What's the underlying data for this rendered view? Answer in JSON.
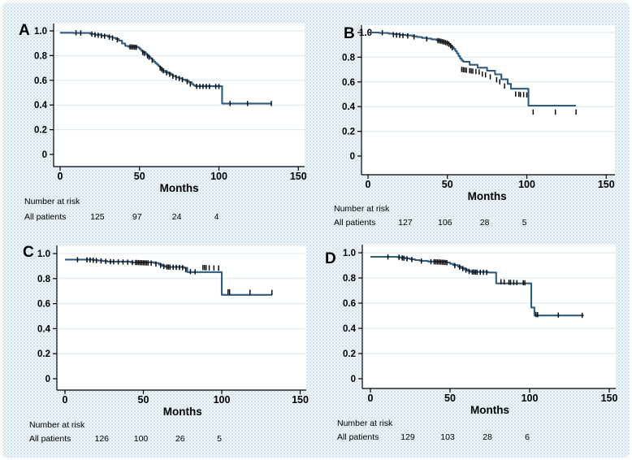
{
  "figure": {
    "xlabel": "Months",
    "risk_header": "Number at risk",
    "risk_label": "All patients",
    "colors": {
      "curve": "#2f5c7e",
      "censor": "#0b0b0b",
      "grid": "#d9e6f0",
      "axis": "#000000",
      "plot_bg": "#feffff",
      "page_bg": "#eff4f8",
      "dot": "#c7dbe8",
      "text": "#000000"
    }
  },
  "axes": {
    "x_ticks": [
      0,
      50,
      100,
      150
    ],
    "x_tick_labels": [
      "0",
      "50",
      "100",
      "150"
    ],
    "y_tick_values": [
      1,
      0.8,
      0.6,
      0.4,
      0.2,
      0
    ],
    "y_tick_labels": [
      "1.0",
      "0.8",
      "0.6",
      "0.4",
      "0.2",
      "0"
    ],
    "xlim": [
      0,
      150
    ],
    "ylim": [
      0,
      1
    ],
    "grid": "horizontal"
  },
  "chart_data": [
    {
      "panel": "A",
      "type": "line",
      "curve_style": "kaplan-meier-step",
      "xlabel": "Months",
      "ylabel": "",
      "xlim": [
        0,
        150
      ],
      "ylim": [
        0,
        1
      ],
      "risk_times": [
        25,
        50,
        75,
        100
      ],
      "risk_counts": [
        125,
        97,
        24,
        4
      ],
      "steps": [
        [
          0,
          0.985
        ],
        [
          8,
          0.983
        ],
        [
          19,
          0.975
        ],
        [
          22,
          0.969
        ],
        [
          26,
          0.962
        ],
        [
          30,
          0.952
        ],
        [
          33,
          0.944
        ],
        [
          35,
          0.934
        ],
        [
          37,
          0.922
        ],
        [
          39,
          0.898
        ],
        [
          41,
          0.878
        ],
        [
          43,
          0.871
        ],
        [
          49,
          0.866
        ],
        [
          50,
          0.854
        ],
        [
          51,
          0.84
        ],
        [
          52,
          0.827
        ],
        [
          54,
          0.811
        ],
        [
          55,
          0.799
        ],
        [
          56,
          0.789
        ],
        [
          57,
          0.776
        ],
        [
          58,
          0.764
        ],
        [
          59,
          0.751
        ],
        [
          60,
          0.738
        ],
        [
          61,
          0.727
        ],
        [
          62,
          0.714
        ],
        [
          63,
          0.701
        ],
        [
          64,
          0.69
        ],
        [
          65,
          0.678
        ],
        [
          66,
          0.667
        ],
        [
          68,
          0.656
        ],
        [
          70,
          0.645
        ],
        [
          71,
          0.634
        ],
        [
          73,
          0.624
        ],
        [
          75,
          0.616
        ],
        [
          77,
          0.606
        ],
        [
          79,
          0.596
        ],
        [
          81,
          0.584
        ],
        [
          83,
          0.569
        ],
        [
          84,
          0.559
        ],
        [
          85,
          0.552
        ],
        [
          101,
          0.552
        ],
        [
          102,
          0.412
        ],
        [
          133,
          0.412
        ]
      ],
      "censors": [
        [
          10,
          0.984
        ],
        [
          13,
          0.983
        ],
        [
          20,
          0.974
        ],
        [
          22,
          0.968
        ],
        [
          24,
          0.965
        ],
        [
          26,
          0.961
        ],
        [
          28,
          0.957
        ],
        [
          31,
          0.95
        ],
        [
          33,
          0.943
        ],
        [
          36,
          0.928
        ],
        [
          44,
          0.87
        ],
        [
          45,
          0.87
        ],
        [
          46,
          0.869
        ],
        [
          47,
          0.868
        ],
        [
          48,
          0.867
        ],
        [
          52,
          0.826
        ],
        [
          53,
          0.818
        ],
        [
          55,
          0.797
        ],
        [
          56,
          0.787
        ],
        [
          58,
          0.762
        ],
        [
          63,
          0.699
        ],
        [
          64,
          0.688
        ],
        [
          65,
          0.677
        ],
        [
          67,
          0.661
        ],
        [
          69,
          0.649
        ],
        [
          71,
          0.633
        ],
        [
          73,
          0.623
        ],
        [
          75,
          0.615
        ],
        [
          77,
          0.605
        ],
        [
          80,
          0.589
        ],
        [
          82,
          0.57
        ],
        [
          86,
          0.551
        ],
        [
          88,
          0.551
        ],
        [
          90,
          0.551
        ],
        [
          92,
          0.551
        ],
        [
          94,
          0.55
        ],
        [
          98,
          0.55
        ],
        [
          100,
          0.55
        ],
        [
          107,
          0.412
        ],
        [
          118,
          0.412
        ],
        [
          133,
          0.412
        ]
      ]
    },
    {
      "panel": "B",
      "type": "line",
      "curve_style": "kaplan-meier-step",
      "xlabel": "Months",
      "ylabel": "",
      "xlim": [
        0,
        150
      ],
      "ylim": [
        0,
        1
      ],
      "risk_times": [
        25,
        50,
        75,
        100
      ],
      "risk_counts": [
        127,
        106,
        28,
        5
      ],
      "steps": [
        [
          0,
          1.0
        ],
        [
          7,
          0.996
        ],
        [
          13,
          0.991
        ],
        [
          16,
          0.986
        ],
        [
          20,
          0.981
        ],
        [
          24,
          0.976
        ],
        [
          28,
          0.969
        ],
        [
          31,
          0.963
        ],
        [
          34,
          0.956
        ],
        [
          37,
          0.951
        ],
        [
          40,
          0.945
        ],
        [
          43,
          0.938
        ],
        [
          45,
          0.931
        ],
        [
          47,
          0.924
        ],
        [
          49,
          0.916
        ],
        [
          51,
          0.907
        ],
        [
          52,
          0.895
        ],
        [
          53,
          0.882
        ],
        [
          54,
          0.867
        ],
        [
          55,
          0.85
        ],
        [
          56,
          0.831
        ],
        [
          57,
          0.81
        ],
        [
          58,
          0.789
        ],
        [
          59,
          0.774
        ],
        [
          60,
          0.764
        ],
        [
          64,
          0.739
        ],
        [
          69,
          0.715
        ],
        [
          75,
          0.69
        ],
        [
          80,
          0.661
        ],
        [
          84,
          0.621
        ],
        [
          88,
          0.584
        ],
        [
          90,
          0.545
        ],
        [
          100,
          0.545
        ],
        [
          101,
          0.408
        ],
        [
          131,
          0.408
        ]
      ],
      "censors": [
        [
          9,
          0.998
        ],
        [
          16,
          0.983
        ],
        [
          18,
          0.98
        ],
        [
          20,
          0.978
        ],
        [
          22,
          0.975
        ],
        [
          25,
          0.972
        ],
        [
          29,
          0.965
        ],
        [
          37,
          0.948
        ],
        [
          44,
          0.935
        ],
        [
          45,
          0.932
        ],
        [
          46,
          0.929
        ],
        [
          47,
          0.926
        ],
        [
          48,
          0.922
        ],
        [
          49,
          0.918
        ],
        [
          50,
          0.913
        ],
        [
          51,
          0.905
        ],
        [
          52,
          0.892
        ],
        [
          53,
          0.877
        ],
        [
          59,
          0.701
        ],
        [
          60,
          0.699
        ],
        [
          61,
          0.697
        ],
        [
          62,
          0.695
        ],
        [
          64,
          0.691
        ],
        [
          65,
          0.689
        ],
        [
          66,
          0.687
        ],
        [
          68,
          0.684
        ],
        [
          70,
          0.68
        ],
        [
          72,
          0.663
        ],
        [
          74,
          0.657
        ],
        [
          77,
          0.641
        ],
        [
          81,
          0.617
        ],
        [
          83,
          0.601
        ],
        [
          86,
          0.567
        ],
        [
          93,
          0.502
        ],
        [
          95,
          0.5
        ],
        [
          96,
          0.498
        ],
        [
          98,
          0.497
        ],
        [
          100,
          0.495
        ],
        [
          104,
          0.356
        ],
        [
          118,
          0.356
        ],
        [
          131,
          0.356
        ]
      ]
    },
    {
      "panel": "C",
      "type": "line",
      "curve_style": "kaplan-meier-step",
      "xlabel": "Months",
      "ylabel": "",
      "xlim": [
        0,
        150
      ],
      "ylim": [
        0,
        1
      ],
      "risk_times": [
        25,
        50,
        75,
        100
      ],
      "risk_counts": [
        126,
        100,
        26,
        5
      ],
      "steps": [
        [
          0,
          0.952
        ],
        [
          18,
          0.948
        ],
        [
          21,
          0.944
        ],
        [
          24,
          0.94
        ],
        [
          27,
          0.936
        ],
        [
          42,
          0.93
        ],
        [
          57,
          0.924
        ],
        [
          60,
          0.912
        ],
        [
          62,
          0.901
        ],
        [
          64,
          0.893
        ],
        [
          76,
          0.886
        ],
        [
          78,
          0.852
        ],
        [
          100,
          0.67
        ],
        [
          132,
          0.67
        ]
      ],
      "censors": [
        [
          8,
          0.951
        ],
        [
          14,
          0.95
        ],
        [
          16,
          0.949
        ],
        [
          18,
          0.947
        ],
        [
          20,
          0.944
        ],
        [
          23,
          0.941
        ],
        [
          26,
          0.938
        ],
        [
          29,
          0.935
        ],
        [
          31,
          0.934
        ],
        [
          34,
          0.933
        ],
        [
          37,
          0.932
        ],
        [
          40,
          0.931
        ],
        [
          43,
          0.929
        ],
        [
          45,
          0.929
        ],
        [
          46,
          0.928
        ],
        [
          47,
          0.928
        ],
        [
          48,
          0.927
        ],
        [
          49,
          0.927
        ],
        [
          50,
          0.926
        ],
        [
          51,
          0.926
        ],
        [
          52,
          0.925
        ],
        [
          53,
          0.925
        ],
        [
          55,
          0.924
        ],
        [
          58,
          0.917
        ],
        [
          61,
          0.905
        ],
        [
          63,
          0.897
        ],
        [
          65,
          0.893
        ],
        [
          66,
          0.893
        ],
        [
          67,
          0.892
        ],
        [
          69,
          0.891
        ],
        [
          71,
          0.89
        ],
        [
          73,
          0.889
        ],
        [
          75,
          0.888
        ],
        [
          77,
          0.872
        ],
        [
          80,
          0.856
        ],
        [
          83,
          0.854
        ],
        [
          88,
          0.889
        ],
        [
          89,
          0.888
        ],
        [
          90,
          0.887
        ],
        [
          92,
          0.886
        ],
        [
          95,
          0.885
        ],
        [
          98,
          0.884
        ],
        [
          104,
          0.694
        ],
        [
          105,
          0.693
        ],
        [
          118,
          0.691
        ],
        [
          132,
          0.689
        ]
      ]
    },
    {
      "panel": "D",
      "type": "line",
      "curve_style": "kaplan-meier-step",
      "xlabel": "Months",
      "ylabel": "",
      "xlim": [
        0,
        150
      ],
      "ylim": [
        0,
        1
      ],
      "risk_times": [
        25,
        50,
        75,
        100
      ],
      "risk_counts": [
        129,
        103,
        28,
        6
      ],
      "steps": [
        [
          0,
          0.968
        ],
        [
          17,
          0.965
        ],
        [
          19,
          0.96
        ],
        [
          22,
          0.954
        ],
        [
          25,
          0.948
        ],
        [
          28,
          0.942
        ],
        [
          31,
          0.936
        ],
        [
          36,
          0.93
        ],
        [
          48,
          0.922
        ],
        [
          50,
          0.912
        ],
        [
          52,
          0.902
        ],
        [
          55,
          0.89
        ],
        [
          57,
          0.879
        ],
        [
          59,
          0.868
        ],
        [
          61,
          0.856
        ],
        [
          63,
          0.848
        ],
        [
          74,
          0.843
        ],
        [
          79,
          0.757
        ],
        [
          101,
          0.565
        ],
        [
          103,
          0.502
        ],
        [
          134,
          0.502
        ]
      ],
      "censors": [
        [
          11,
          0.967
        ],
        [
          18,
          0.964
        ],
        [
          20,
          0.959
        ],
        [
          21,
          0.957
        ],
        [
          23,
          0.952
        ],
        [
          26,
          0.946
        ],
        [
          32,
          0.934
        ],
        [
          38,
          0.929
        ],
        [
          40,
          0.928
        ],
        [
          41,
          0.928
        ],
        [
          42,
          0.927
        ],
        [
          43,
          0.927
        ],
        [
          44,
          0.926
        ],
        [
          45,
          0.925
        ],
        [
          46,
          0.924
        ],
        [
          47,
          0.923
        ],
        [
          48,
          0.921
        ],
        [
          53,
          0.898
        ],
        [
          56,
          0.886
        ],
        [
          58,
          0.875
        ],
        [
          60,
          0.862
        ],
        [
          62,
          0.852
        ],
        [
          64,
          0.847
        ],
        [
          65,
          0.847
        ],
        [
          66,
          0.846
        ],
        [
          67,
          0.846
        ],
        [
          69,
          0.845
        ],
        [
          71,
          0.845
        ],
        [
          73,
          0.844
        ],
        [
          82,
          0.77
        ],
        [
          84,
          0.768
        ],
        [
          87,
          0.766
        ],
        [
          88,
          0.765
        ],
        [
          90,
          0.764
        ],
        [
          92,
          0.763
        ],
        [
          96,
          0.762
        ],
        [
          97,
          0.761
        ],
        [
          104,
          0.51
        ],
        [
          105,
          0.508
        ],
        [
          118,
          0.505
        ],
        [
          133,
          0.503
        ]
      ]
    }
  ]
}
